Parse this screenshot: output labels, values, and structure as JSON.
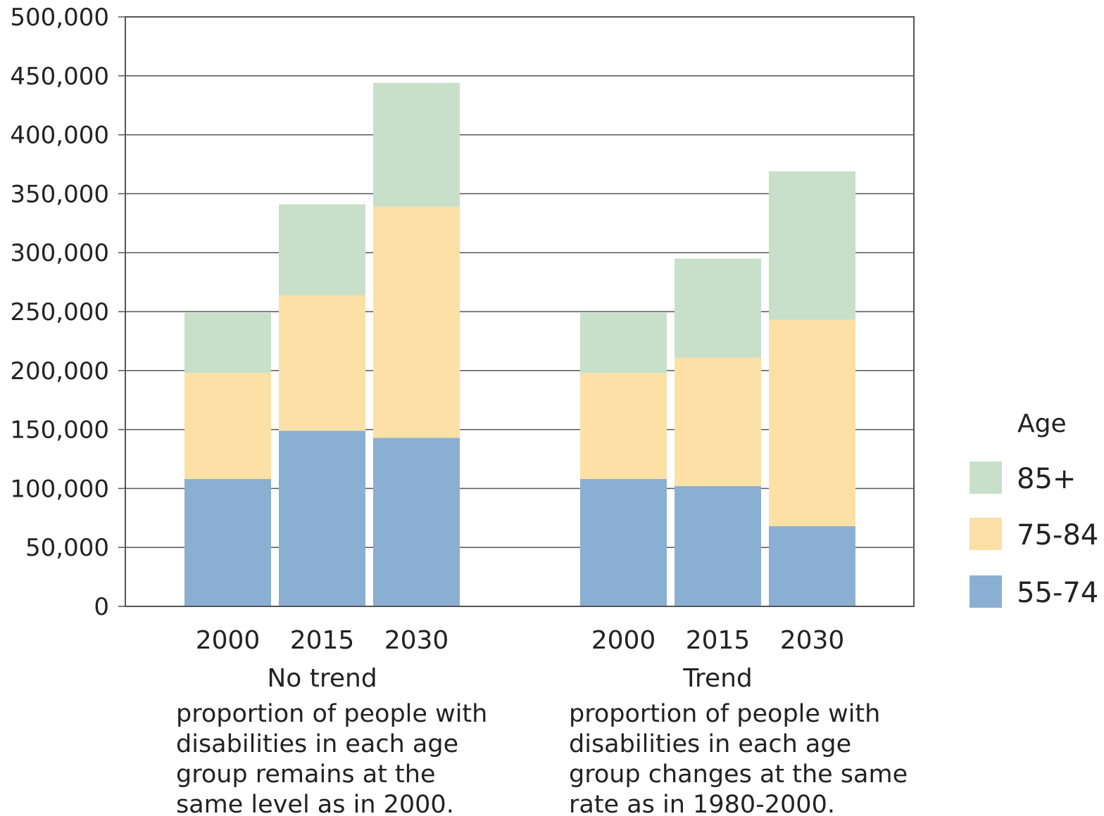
{
  "chart_data": {
    "type": "bar",
    "stacked": true,
    "ylim": [
      0,
      500000
    ],
    "yticks": [
      "0",
      "50,000",
      "100,000",
      "150,000",
      "200,000",
      "250,000",
      "300,000",
      "350,000",
      "400,000",
      "450,000",
      "500,000"
    ],
    "grid": true,
    "legend": {
      "title": "Age",
      "position": "right"
    },
    "groups": [
      {
        "title": "No trend",
        "description": [
          "proportion of people with",
          "disabilities in each age",
          "group remains at the",
          "same level as in 2000."
        ],
        "categories": [
          "2000",
          "2015",
          "2030"
        ]
      },
      {
        "title": "Trend",
        "description": [
          "proportion of people with",
          "disabilities in each age",
          "group changes at the same",
          "rate as in 1980-2000."
        ],
        "categories": [
          "2000",
          "2015",
          "2030"
        ]
      }
    ],
    "series": [
      {
        "name": "55-74",
        "color": "#8bafd2",
        "values": [
          [
            108000,
            149000,
            143000
          ],
          [
            108000,
            102000,
            68000
          ]
        ]
      },
      {
        "name": "75-84",
        "color": "#fde0a6",
        "values": [
          [
            90000,
            115000,
            196000
          ],
          [
            90000,
            109000,
            175000
          ]
        ]
      },
      {
        "name": "85+",
        "color": "#c8dfca",
        "values": [
          [
            51000,
            77000,
            105000
          ],
          [
            51000,
            84000,
            126000
          ]
        ]
      }
    ]
  }
}
